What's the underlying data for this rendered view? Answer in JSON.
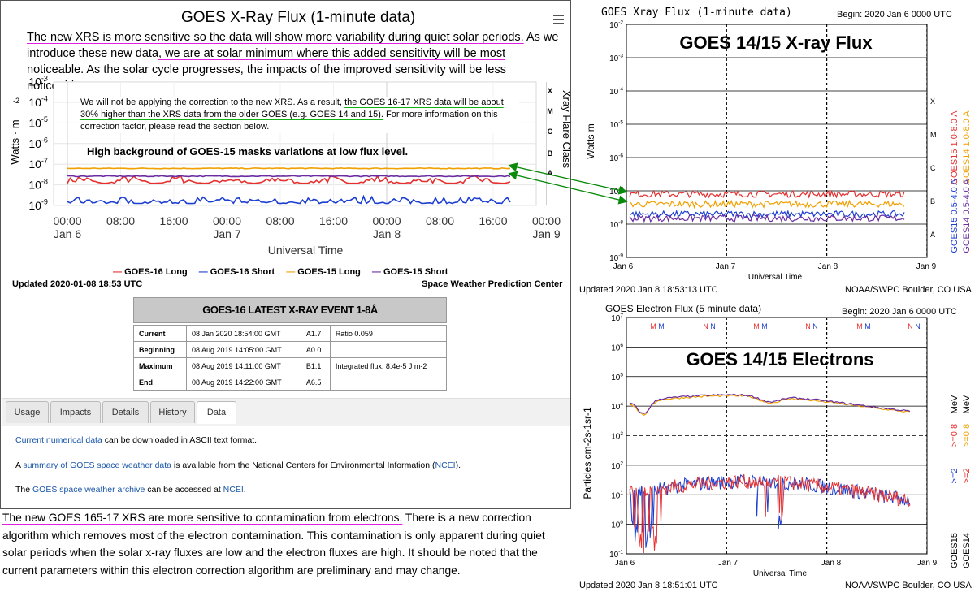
{
  "left": {
    "title": "GOES X-Ray Flux (1-minute data)",
    "menu_icon": "hamburger-menu-icon",
    "intro_1": "The new XRS is more sensitive so the data will show more variability during quiet solar periods.",
    "intro_2": "As we introduce these new data",
    "intro_3": ", we are at solar minimum where this added sensitivity will be most noticeable.",
    "intro_4": "As the solar cycle progresses, the impacts of the improved sensitivity will be less noticeable.",
    "note_1": "We will not be applying the correction to the new XRS.  As a result, ",
    "note_2": "the GOES 16-17 XRS data will be about 30% higher than the XRS data from the older GOES (e.g. GOES 14 and 15).",
    "note_3": "  For more information on this correction factor, please read the section below.",
    "background_note": "High background of GOES-15 masks variations at low flux level.",
    "updated": "Updated 2020-01-08 18:53 UTC",
    "swpc": "Space Weather Prediction Center",
    "legend": [
      "GOES-16 Long",
      "GOES-16 Short",
      "GOES-15 Long",
      "GOES-15 Short"
    ],
    "legend_colors": [
      "#e53030",
      "#1c3fd0",
      "#f0a000",
      "#6a2ca0"
    ],
    "event": {
      "title": "GOES-16 LATEST X-RAY EVENT 1-8Å",
      "rows": [
        {
          "label": "Current",
          "time": "08 Jan 2020 18:54:00 GMT",
          "class": "A1.7",
          "note": "Ratio 0.059"
        },
        {
          "label": "Beginning",
          "time": "08 Aug 2019 14:05:00 GMT",
          "class": "A0.0",
          "note": ""
        },
        {
          "label": "Maximum",
          "time": "08 Aug 2019 14:11:00 GMT",
          "class": "B1.1",
          "note": "Integrated flux: 8.4e-5 J m-2"
        },
        {
          "label": "End",
          "time": "08 Aug 2019 14:22:00 GMT",
          "class": "A6.5",
          "note": ""
        }
      ]
    },
    "tabs": [
      "Usage",
      "Impacts",
      "Details",
      "History",
      "Data"
    ],
    "active_tab": "Data",
    "data_tab": {
      "p1_link": "Current numerical data",
      "p1_rest": " can be downloaded in ASCII text format.",
      "p2_a": "A ",
      "p2_link": "summary of GOES space weather data",
      "p2_b": " is available from the National Centers for Environmental Information (",
      "p2_link2": "NCEI",
      "p2_c": ").",
      "p3_a": "The ",
      "p3_link": "GOES space weather archive",
      "p3_b": " can be accessed at ",
      "p3_link2": "NCEI",
      "p3_c": "."
    }
  },
  "bottom_text": {
    "underlined": "The new GOES 165-17 XRS are more sensitive to contamination from electrons.",
    "rest": "  There is a new correction algorithm which removes most of the electron contamination. This contamination is only apparent during quiet solar periods when the solar x-ray fluxes are low and the electron fluxes are high. It should be noted that the current parameters within this electron correction algorithm are preliminary and may change."
  },
  "xray_right": {
    "title": "GOES Xray Flux (1-minute data)",
    "begin": "Begin:  2020 Jan 6 0000 UTC",
    "overlay": "GOES 14/15 X-ray Flux",
    "updated": "Updated 2020 Jan  8 18:53:13 UTC",
    "credit": "NOAA/SWPC Boulder, CO USA",
    "ylabel": "Watts m",
    "xlabel": "Universal Time",
    "right_labels": [
      "GOES15 1.0-8.0 A",
      "GOES14 1.0-8.0 A",
      "GOES15 0.5-4.0 A",
      "GOES14 0.5-4.0 A"
    ],
    "class_letters": [
      "X",
      "M",
      "C",
      "B",
      "A"
    ]
  },
  "electron_right": {
    "title": "GOES Electron Flux (5 minute data)",
    "begin": "Begin:  2020 Jan 6 0000 UTC",
    "overlay": "GOES 14/15 Electrons",
    "updated": "Updated 2020 Jan  8 18:51:01 UTC",
    "credit": "NOAA/SWPC Boulder, CO USA",
    "ylabel": "Particles cm-2s-1sr-1",
    "xlabel": "Universal Time",
    "top_markers": [
      "M M",
      "N N",
      "M M",
      "N N",
      "M M",
      "N N"
    ],
    "right_labels": [
      ">=2",
      ">=0.8",
      "MeV",
      "GOES15",
      ">=2",
      ">=0.8",
      "MeV",
      "GOES14"
    ]
  },
  "chart_data": [
    {
      "type": "line",
      "title": "GOES X-Ray Flux (1-minute data)",
      "xlabel": "Universal Time",
      "ylabel": "Watts · m-2",
      "yscale": "log",
      "ylim": [
        1e-09,
        0.001
      ],
      "x_ticks": [
        "00:00 Jan 6",
        "08:00",
        "16:00",
        "00:00 Jan 7",
        "08:00",
        "16:00",
        "00:00 Jan 8",
        "08:00",
        "16:00",
        "00:00 Jan 9"
      ],
      "y_ticks": [
        "10-9",
        "10-8",
        "10-7",
        "10-6",
        "10-5",
        "10-4",
        "10-3"
      ],
      "flare_classes": [
        "A",
        "B",
        "C",
        "M",
        "X"
      ],
      "right_axis_label": "Xray Flare Class",
      "series": [
        {
          "name": "GOES-16 Long",
          "approx_range": [
            8e-09,
            3e-08
          ]
        },
        {
          "name": "GOES-16 Short",
          "approx_range": [
            1e-09,
            3e-09
          ]
        },
        {
          "name": "GOES-15 Long",
          "approx_range": [
            6e-08,
            7e-08
          ]
        },
        {
          "name": "GOES-15 Short",
          "approx_range": [
            2.5e-08,
            3e-08
          ]
        }
      ]
    },
    {
      "type": "line",
      "title": "GOES Xray Flux (1-minute data)",
      "yscale": "log",
      "ylim": [
        1e-09,
        0.01
      ],
      "x_ticks": [
        "Jan 6",
        "Jan 7",
        "Jan 8",
        "Jan 9"
      ],
      "y_ticks": [
        "10-9",
        "10-8",
        "10-7",
        "10-6",
        "10-5",
        "10-4",
        "10-3",
        "10-2"
      ],
      "series": [
        {
          "name": "GOES15 1.0-8.0 A",
          "approx_value": 8e-08
        },
        {
          "name": "GOES14 1.0-8.0 A",
          "approx_value": 4e-08
        },
        {
          "name": "GOES15 0.5-4.0 A",
          "approx_value": 2e-08
        },
        {
          "name": "GOES14 0.5-4.0 A",
          "approx_value": 1.5e-08
        }
      ]
    },
    {
      "type": "line",
      "title": "GOES Electron Flux (5 minute data)",
      "yscale": "log",
      "ylim": [
        0.1,
        10000000.0
      ],
      "x_ticks": [
        "Jan 6",
        "Jan 7",
        "Jan 8",
        "Jan 9"
      ],
      "y_ticks": [
        "10-1",
        "100",
        "101",
        "102",
        "103",
        "104",
        "105",
        "106",
        "107"
      ],
      "threshold": 1000,
      "series": [
        {
          "name": ">=0.8 MeV",
          "approx_value": 10000.0
        },
        {
          "name": ">=2 MeV",
          "approx_value": 10
        }
      ]
    }
  ]
}
